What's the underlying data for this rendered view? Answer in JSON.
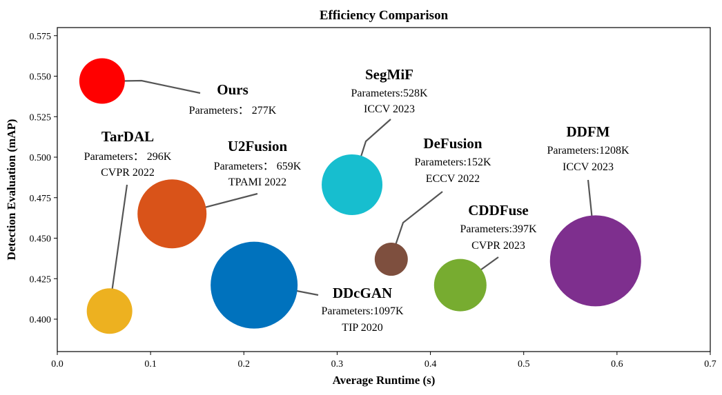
{
  "chart_data": {
    "type": "scatter",
    "title": "Efficiency Comparison",
    "xlabel": "Average Runtime (s)",
    "ylabel": "Detection Evaluation (mAP)",
    "xlim": [
      0.0,
      0.7
    ],
    "ylim": [
      0.38,
      0.58
    ],
    "xticks": [
      "0.0",
      "0.1",
      "0.2",
      "0.3",
      "0.4",
      "0.5",
      "0.6",
      "0.7"
    ],
    "yticks": [
      "0.400",
      "0.425",
      "0.450",
      "0.475",
      "0.500",
      "0.525",
      "0.550",
      "0.575"
    ],
    "grid": false,
    "size_encoding": "Parameters",
    "series": [
      {
        "name": "Ours",
        "x": 0.048,
        "y": 0.547,
        "params_k": 277,
        "color": "#ff0000",
        "name_color": "#ff0000",
        "lines": [
          "Parameters： 277K"
        ]
      },
      {
        "name": "TarDAL",
        "x": 0.056,
        "y": 0.405,
        "params_k": 296,
        "color": "#edb120",
        "name_color": "#000000",
        "lines": [
          "Parameters： 296K",
          "CVPR 2022"
        ]
      },
      {
        "name": "U2Fusion",
        "x": 0.123,
        "y": 0.465,
        "params_k": 659,
        "color": "#d95319",
        "name_color": "#000000",
        "lines": [
          "Parameters： 659K",
          "TPAMI 2022"
        ]
      },
      {
        "name": "DDcGAN",
        "x": 0.211,
        "y": 0.421,
        "params_k": 1097,
        "color": "#0072bd",
        "name_color": "#000000",
        "lines": [
          "Parameters:1097K",
          "TIP 2020"
        ]
      },
      {
        "name": "SegMiF",
        "x": 0.316,
        "y": 0.483,
        "params_k": 528,
        "color": "#17becf",
        "name_color": "#000000",
        "lines": [
          "Parameters:528K",
          "ICCV 2023"
        ]
      },
      {
        "name": "DeFusion",
        "x": 0.358,
        "y": 0.437,
        "params_k": 152,
        "color": "#7e4f3e",
        "name_color": "#000000",
        "lines": [
          "Parameters:152K",
          "ECCV 2022"
        ]
      },
      {
        "name": "CDDFuse",
        "x": 0.432,
        "y": 0.421,
        "params_k": 397,
        "color": "#77ac30",
        "name_color": "#000000",
        "lines": [
          "Parameters:397K",
          "CVPR 2023"
        ]
      },
      {
        "name": "DDFM",
        "x": 0.577,
        "y": 0.436,
        "params_k": 1208,
        "color": "#7e2f8e",
        "name_color": "#000000",
        "lines": [
          "Parameters:1208K",
          "ICCV 2023"
        ]
      }
    ],
    "connector_color": "#555555"
  }
}
